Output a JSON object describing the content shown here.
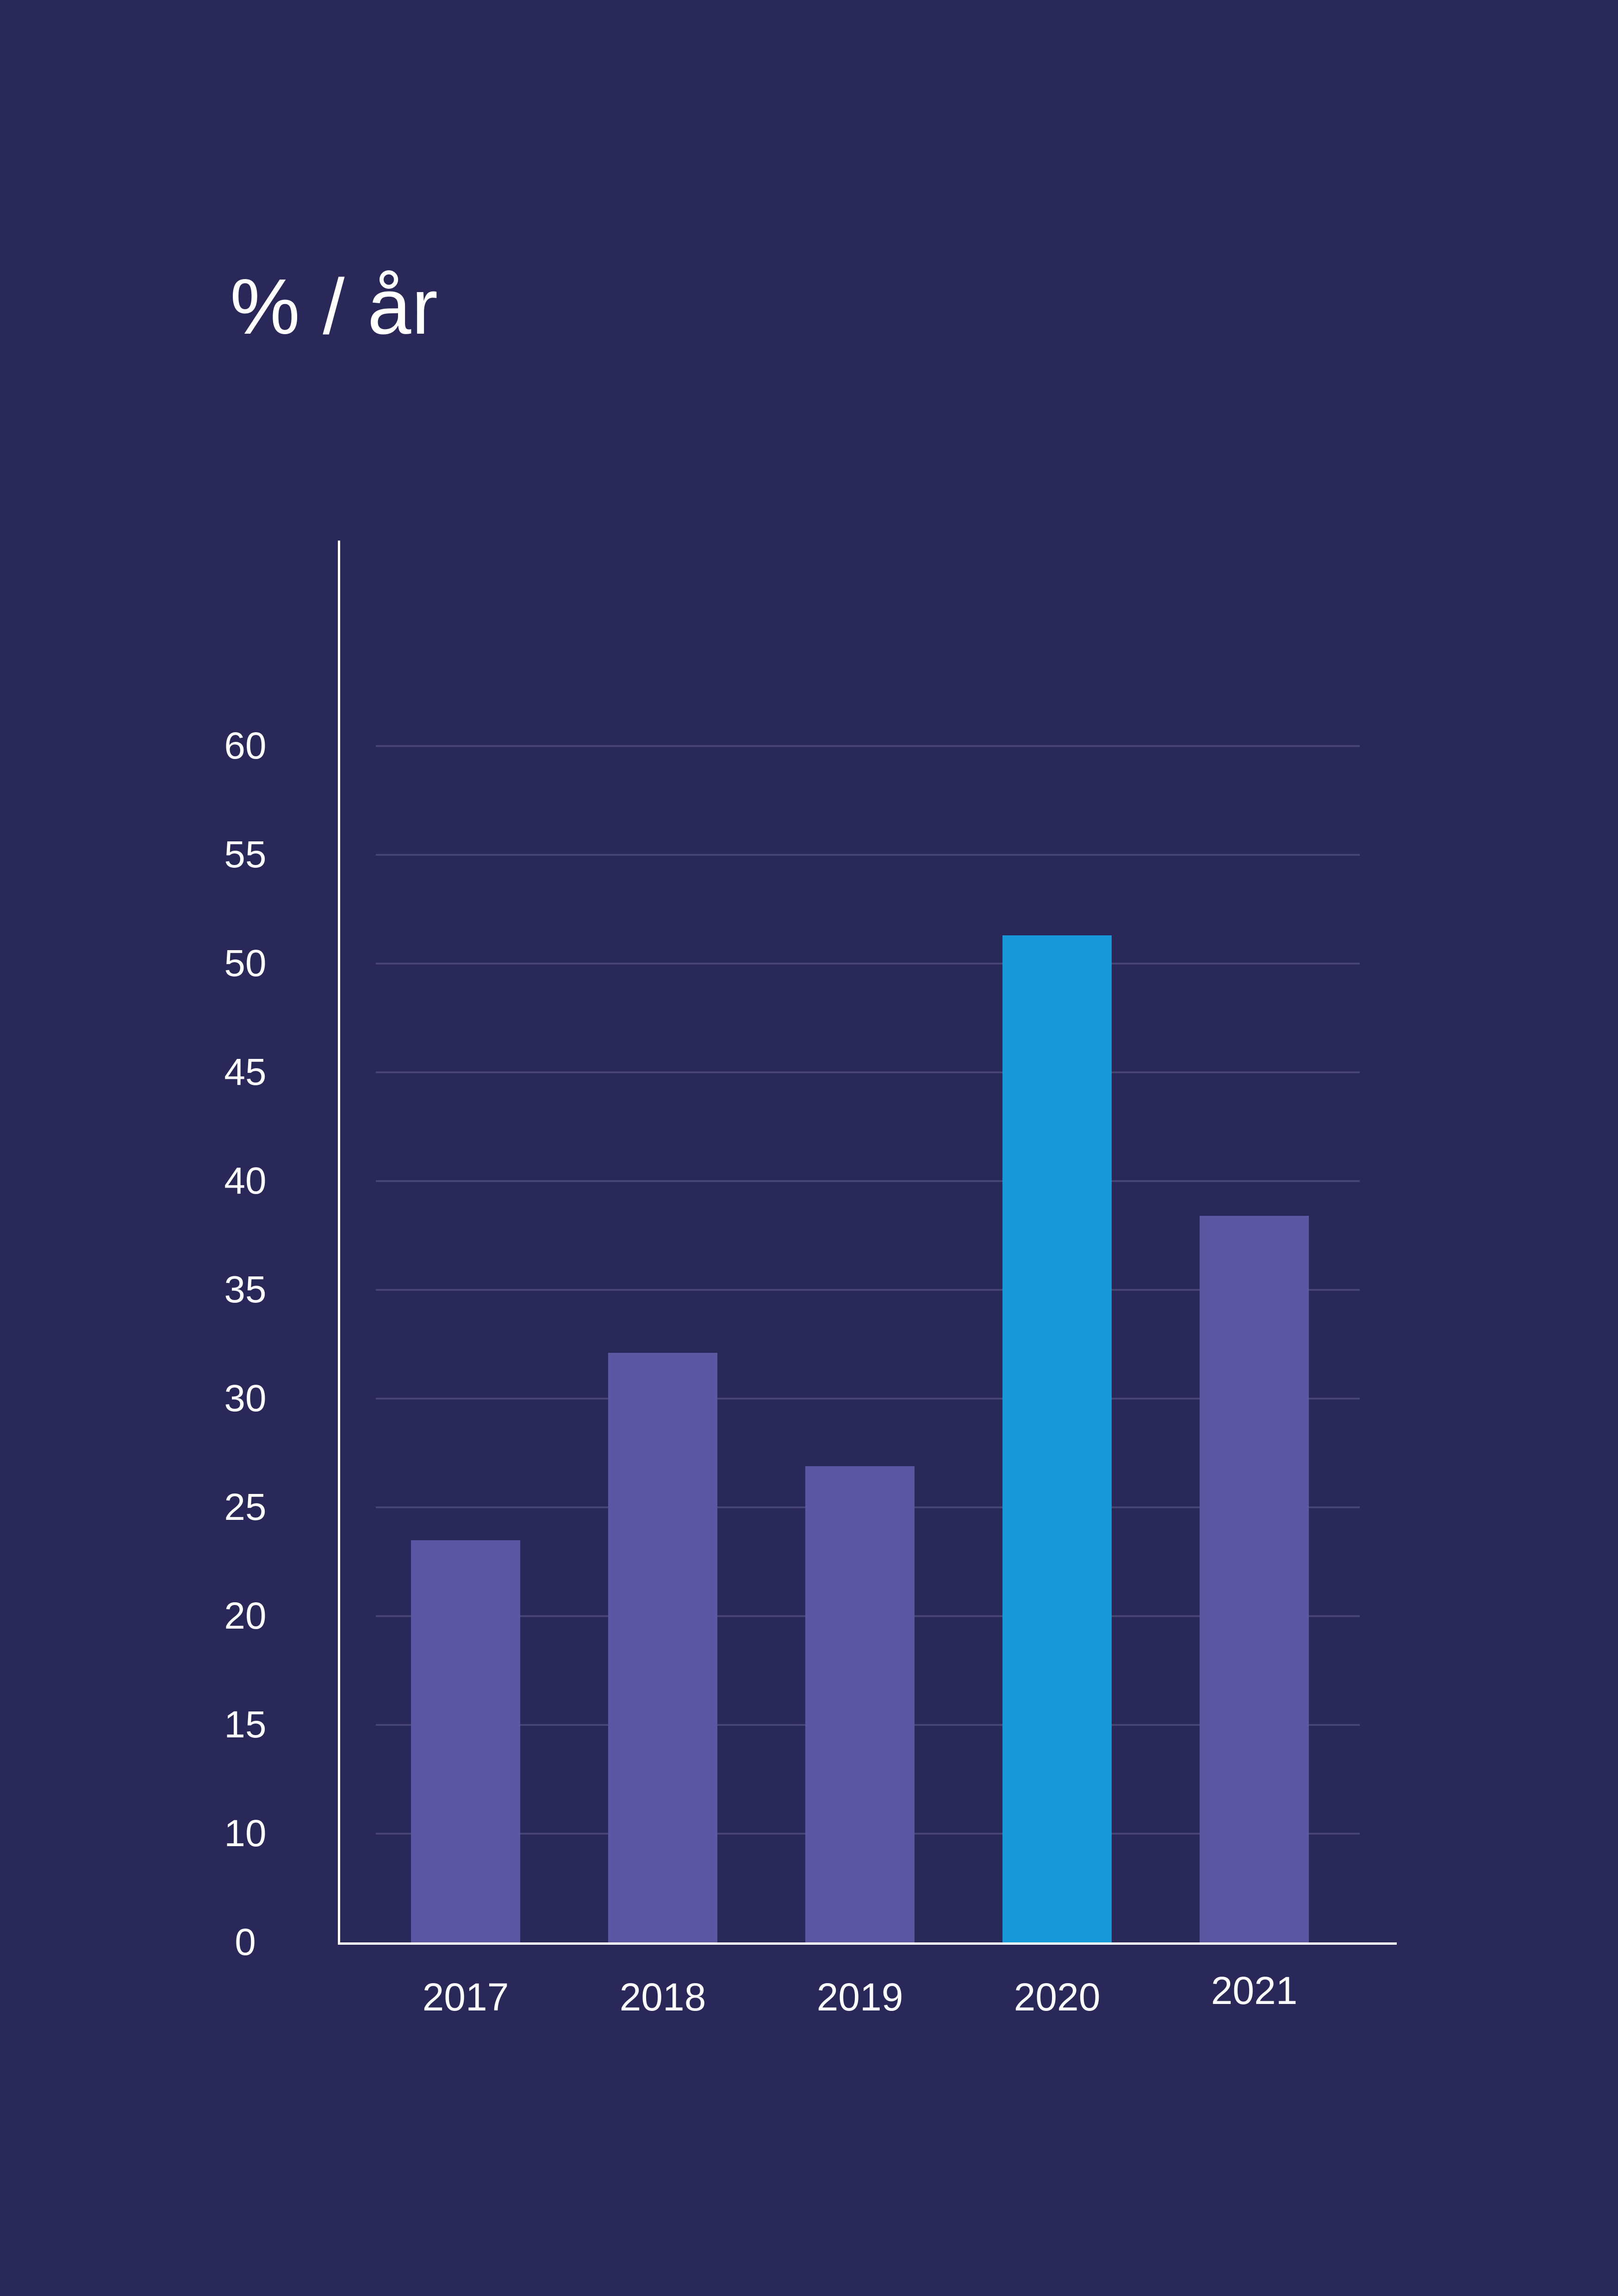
{
  "page": {
    "background": "#2A2759"
  },
  "title": "% / år",
  "chart_data": {
    "type": "bar",
    "title": "% / år",
    "categories": [
      "2017",
      "2018",
      "2019",
      "2020",
      "2021"
    ],
    "values": [
      23.5,
      32.1,
      26.9,
      51.3,
      38.4
    ],
    "unit": "% per år",
    "highlight_category": "2020",
    "yticks": [
      0,
      10,
      15,
      20,
      25,
      30,
      35,
      40,
      45,
      50,
      55,
      60
    ],
    "ylim": [
      0,
      64
    ],
    "xlabel": "",
    "ylabel": "% / år",
    "grid": "horizontal",
    "legend": "none",
    "axis_note": "ticks are evenly spaced vertically; the 0 to 10 interval occupies the same height as each 5-unit interval (no 5 tick)",
    "colors": {
      "background": "#2A2759",
      "bar": "#5B57A2",
      "highlight_bar": "#1799D8",
      "gridline": "#474372",
      "axis_line": "#FFFFFF",
      "label_text": "#FFFFFF"
    }
  }
}
